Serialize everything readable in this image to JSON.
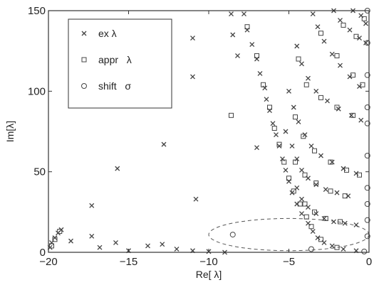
{
  "chart_data": {
    "type": "scatter",
    "xlabel": "Re[ λ]",
    "ylabel": "Im[λ]",
    "xlim": [
      -20,
      0
    ],
    "ylim": [
      0,
      150
    ],
    "xticks": [
      -20,
      -15,
      -10,
      -5,
      0
    ],
    "yticks": [
      0,
      50,
      100,
      150
    ],
    "xtick_labels": [
      "−20",
      "−15",
      "−10",
      "−5",
      "0"
    ],
    "ytick_labels": [
      "0",
      "50",
      "100",
      "150"
    ],
    "grid": false,
    "legend_position": "top-left",
    "legend": [
      {
        "marker": "x",
        "label": "ex λ"
      },
      {
        "marker": "square",
        "label": "appr   λ"
      },
      {
        "marker": "circle",
        "label": "shift   σ"
      }
    ],
    "series": [
      {
        "name": "ex λ",
        "marker": "x",
        "points": [
          [
            -19.2,
            14
          ],
          [
            -19.4,
            12
          ],
          [
            -19.6,
            9
          ],
          [
            -19.8,
            6
          ],
          [
            -19.9,
            3
          ],
          [
            -18.6,
            7
          ],
          [
            -17.3,
            10
          ],
          [
            -16.8,
            3
          ],
          [
            -15.8,
            6
          ],
          [
            -15.0,
            1
          ],
          [
            -13.8,
            4
          ],
          [
            -12.9,
            5
          ],
          [
            -12.0,
            2
          ],
          [
            -11.0,
            1
          ],
          [
            -10.0,
            0.5
          ],
          [
            -9.0,
            0
          ],
          [
            -17.3,
            29
          ],
          [
            -15.7,
            52
          ],
          [
            -12.8,
            67
          ],
          [
            -10.8,
            33
          ],
          [
            -7.0,
            65
          ],
          [
            -11.0,
            133
          ],
          [
            -11.0,
            109
          ],
          [
            -8.6,
            148
          ],
          [
            -8.5,
            135
          ],
          [
            -8.2,
            122
          ],
          [
            -7.8,
            148
          ],
          [
            -7.6,
            138
          ],
          [
            -7.3,
            129
          ],
          [
            -7.0,
            120
          ],
          [
            -6.8,
            111
          ],
          [
            -6.5,
            102
          ],
          [
            -6.4,
            95
          ],
          [
            -6.2,
            88
          ],
          [
            -6.0,
            80
          ],
          [
            -5.8,
            73
          ],
          [
            -5.6,
            66
          ],
          [
            -5.4,
            58
          ],
          [
            -5.2,
            51
          ],
          [
            -5.0,
            44
          ],
          [
            -4.8,
            37
          ],
          [
            -4.5,
            30
          ],
          [
            -4.2,
            24
          ],
          [
            -3.8,
            18
          ],
          [
            -3.5,
            13
          ],
          [
            -3.2,
            9
          ],
          [
            -2.8,
            6
          ],
          [
            -2.3,
            4
          ],
          [
            -1.6,
            2
          ],
          [
            -0.8,
            1
          ],
          [
            -3.5,
            148
          ],
          [
            -3.2,
            140
          ],
          [
            -2.8,
            131
          ],
          [
            -2.3,
            123
          ],
          [
            -1.8,
            116
          ],
          [
            -1.2,
            109
          ],
          [
            -0.6,
            103
          ],
          [
            -4.5,
            128
          ],
          [
            -4.2,
            117
          ],
          [
            -3.8,
            108
          ],
          [
            -3.3,
            100
          ],
          [
            -2.6,
            94
          ],
          [
            -1.9,
            89
          ],
          [
            -1.1,
            85
          ],
          [
            -0.5,
            82
          ],
          [
            -5.0,
            100
          ],
          [
            -4.7,
            90
          ],
          [
            -4.4,
            81
          ],
          [
            -4.0,
            73
          ],
          [
            -3.6,
            66
          ],
          [
            -3.0,
            60
          ],
          [
            -2.3,
            56
          ],
          [
            -1.6,
            52
          ],
          [
            -0.8,
            49
          ],
          [
            -5.2,
            75
          ],
          [
            -4.8,
            66
          ],
          [
            -4.5,
            58
          ],
          [
            -4.2,
            51
          ],
          [
            -3.8,
            46
          ],
          [
            -3.3,
            42
          ],
          [
            -2.7,
            39
          ],
          [
            -2.0,
            37
          ],
          [
            -1.3,
            35
          ],
          [
            -4.5,
            40
          ],
          [
            -4.2,
            33
          ],
          [
            -3.8,
            28
          ],
          [
            -3.3,
            24
          ],
          [
            -2.8,
            21
          ],
          [
            -2.2,
            19
          ],
          [
            -1.5,
            18
          ],
          [
            -0.8,
            17
          ],
          [
            -2.2,
            150
          ],
          [
            -1.8,
            144
          ],
          [
            -1.2,
            138
          ],
          [
            -0.6,
            133
          ],
          [
            -0.2,
            130
          ],
          [
            -0.5,
            147
          ],
          [
            -0.2,
            142
          ],
          [
            -1.0,
            150
          ]
        ]
      },
      {
        "name": "appr   λ",
        "marker": "square",
        "points": [
          [
            -19.3,
            13
          ],
          [
            -19.6,
            8
          ],
          [
            -19.8,
            4
          ],
          [
            -8.6,
            85
          ],
          [
            -7.6,
            140
          ],
          [
            -7.0,
            122
          ],
          [
            -6.6,
            104
          ],
          [
            -6.2,
            90
          ],
          [
            -5.9,
            77
          ],
          [
            -5.6,
            67
          ],
          [
            -5.3,
            56
          ],
          [
            -5.0,
            46
          ],
          [
            -4.7,
            38
          ],
          [
            -4.3,
            30
          ],
          [
            -3.9,
            22
          ],
          [
            -3.6,
            16
          ],
          [
            -3.0,
            8
          ],
          [
            -2.0,
            3
          ],
          [
            -4.4,
            120
          ],
          [
            -3.9,
            104
          ],
          [
            -3.0,
            96
          ],
          [
            -2.0,
            90
          ],
          [
            -1.0,
            85
          ],
          [
            -4.6,
            84
          ],
          [
            -4.1,
            72
          ],
          [
            -3.4,
            63
          ],
          [
            -2.4,
            56
          ],
          [
            -1.4,
            51
          ],
          [
            -0.6,
            48
          ],
          [
            -4.6,
            56
          ],
          [
            -4.0,
            48
          ],
          [
            -3.3,
            43
          ],
          [
            -2.4,
            38
          ],
          [
            -1.5,
            35
          ],
          [
            -4.0,
            30
          ],
          [
            -3.4,
            25
          ],
          [
            -2.7,
            21
          ],
          [
            -1.8,
            19
          ],
          [
            -3.0,
            136
          ],
          [
            -2.0,
            122
          ],
          [
            -1.0,
            110
          ],
          [
            -0.4,
            104
          ],
          [
            -1.6,
            141
          ],
          [
            -0.8,
            134
          ],
          [
            -0.3,
            145
          ]
        ]
      },
      {
        "name": "shift   σ",
        "marker": "circle",
        "points": [
          [
            -8.5,
            11
          ],
          [
            -3.6,
            2
          ],
          [
            -0.3,
            0.5
          ],
          [
            -0.1,
            10
          ],
          [
            -0.1,
            20
          ],
          [
            -0.1,
            30
          ],
          [
            -0.1,
            40
          ],
          [
            -0.1,
            60
          ],
          [
            -0.1,
            80
          ],
          [
            -0.1,
            90
          ],
          [
            -0.1,
            110
          ],
          [
            -0.1,
            130
          ],
          [
            -0.1,
            150
          ]
        ]
      }
    ],
    "annotations": [
      {
        "type": "dashed-ellipse",
        "center": [
          -5,
          11
        ],
        "rx": 5,
        "ry": 10
      }
    ]
  }
}
